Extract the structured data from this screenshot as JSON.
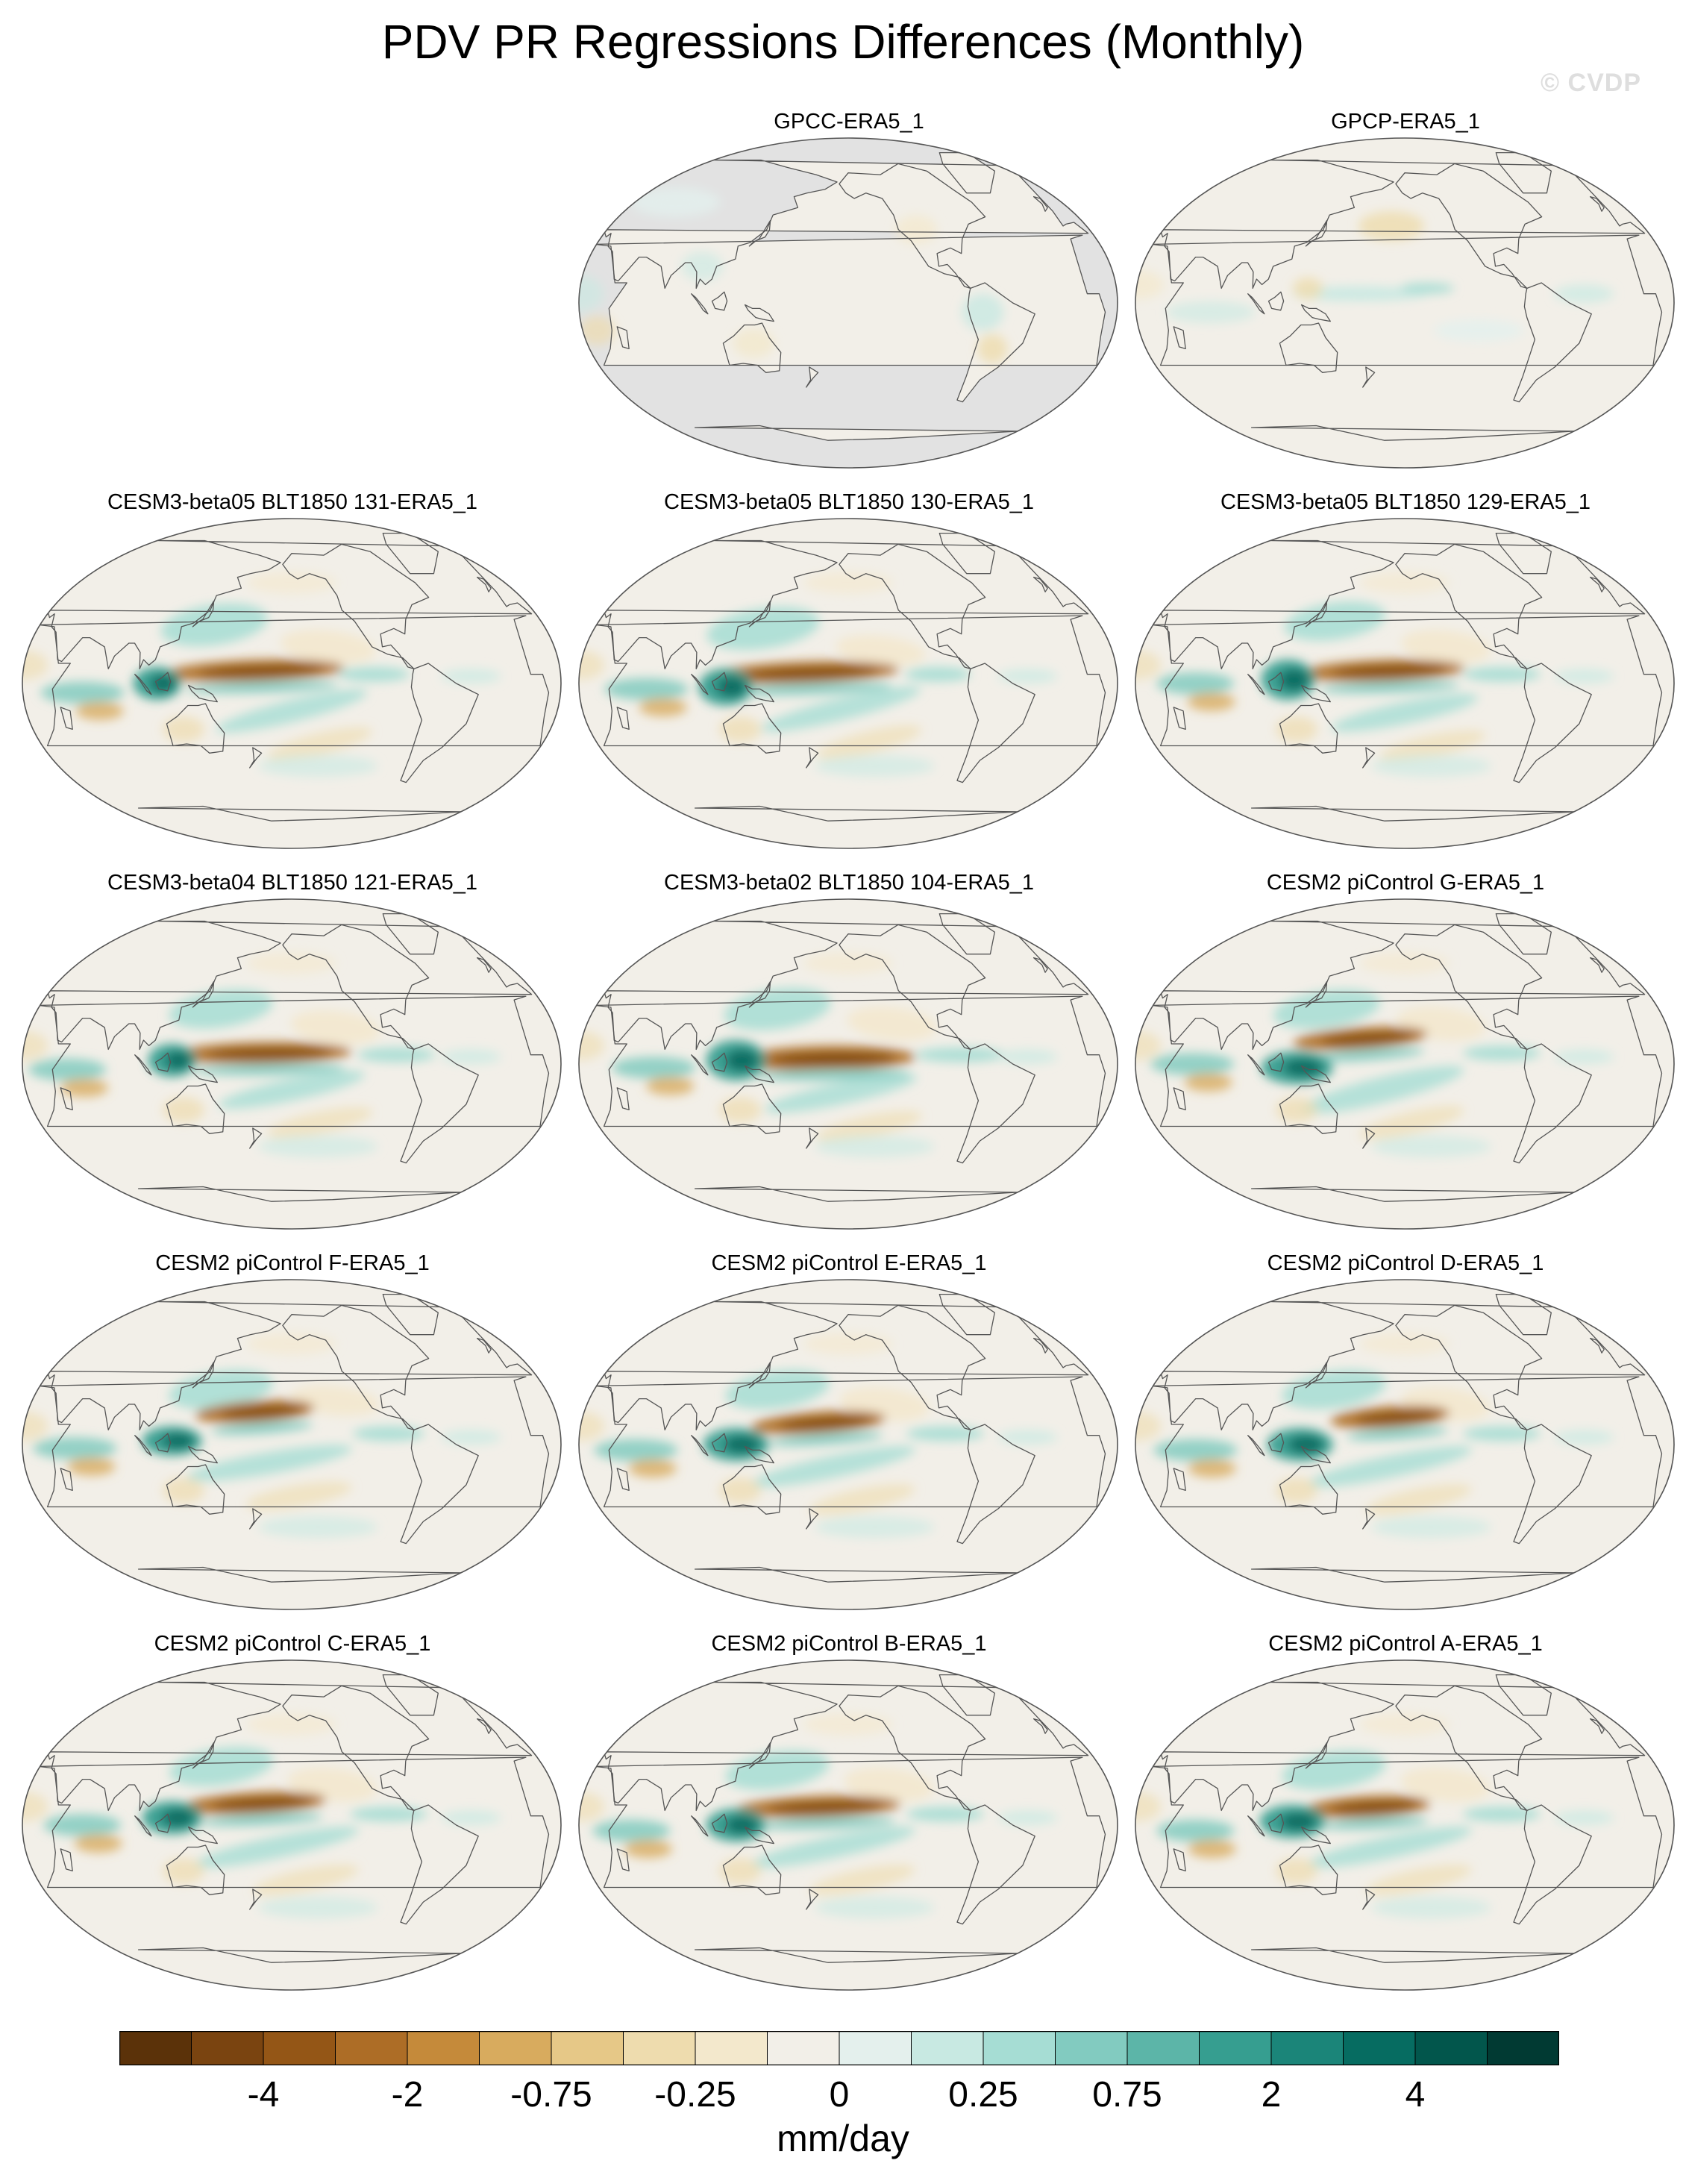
{
  "title": "PDV PR Regressions Differences (Monthly)",
  "watermark": "© CVDP",
  "map": {
    "projection": "Robinson, Pacific-centered",
    "land_mask_color": "#e2e2e2",
    "coastline_color": "#555555"
  },
  "panels": [
    {
      "label": "GPCC-ERA5_1",
      "land_only": true,
      "pattern": "weak"
    },
    {
      "label": "GPCP-ERA5_1",
      "land_only": false,
      "pattern": "weak"
    },
    {
      "label": "CESM3-beta05 BLT1850 131-ERA5_1",
      "land_only": false,
      "pattern": "strong"
    },
    {
      "label": "CESM3-beta05 BLT1850 130-ERA5_1",
      "land_only": false,
      "pattern": "strong"
    },
    {
      "label": "CESM3-beta05 BLT1850 129-ERA5_1",
      "land_only": false,
      "pattern": "strong"
    },
    {
      "label": "CESM3-beta04 BLT1850 121-ERA5_1",
      "land_only": false,
      "pattern": "strong"
    },
    {
      "label": "CESM3-beta02 BLT1850 104-ERA5_1",
      "land_only": false,
      "pattern": "strong"
    },
    {
      "label": "CESM2 piControl G-ERA5_1",
      "land_only": false,
      "pattern": "strong"
    },
    {
      "label": "CESM2 piControl F-ERA5_1",
      "land_only": false,
      "pattern": "strong"
    },
    {
      "label": "CESM2 piControl E-ERA5_1",
      "land_only": false,
      "pattern": "strong"
    },
    {
      "label": "CESM2 piControl D-ERA5_1",
      "land_only": false,
      "pattern": "strong"
    },
    {
      "label": "CESM2 piControl C-ERA5_1",
      "land_only": false,
      "pattern": "strong"
    },
    {
      "label": "CESM2 piControl B-ERA5_1",
      "land_only": false,
      "pattern": "strong"
    },
    {
      "label": "CESM2 piControl A-ERA5_1",
      "land_only": false,
      "pattern": "strong"
    }
  ],
  "colorbar": {
    "units": "mm/day",
    "colors": [
      "#5b3209",
      "#7a4410",
      "#945616",
      "#ad6d26",
      "#c58a3a",
      "#d8ab5e",
      "#e6c887",
      "#eedcae",
      "#f3e8cc",
      "#f2efe8",
      "#e4f0ed",
      "#c8e9e2",
      "#a6ddd4",
      "#82cbc0",
      "#5cb5a8",
      "#369e90",
      "#1b8579",
      "#066c61",
      "#02564c",
      "#013a33"
    ],
    "tick_labels": [
      "-4",
      "-2",
      "-0.75",
      "-0.25",
      "0",
      "0.25",
      "0.75",
      "2",
      "4"
    ]
  }
}
